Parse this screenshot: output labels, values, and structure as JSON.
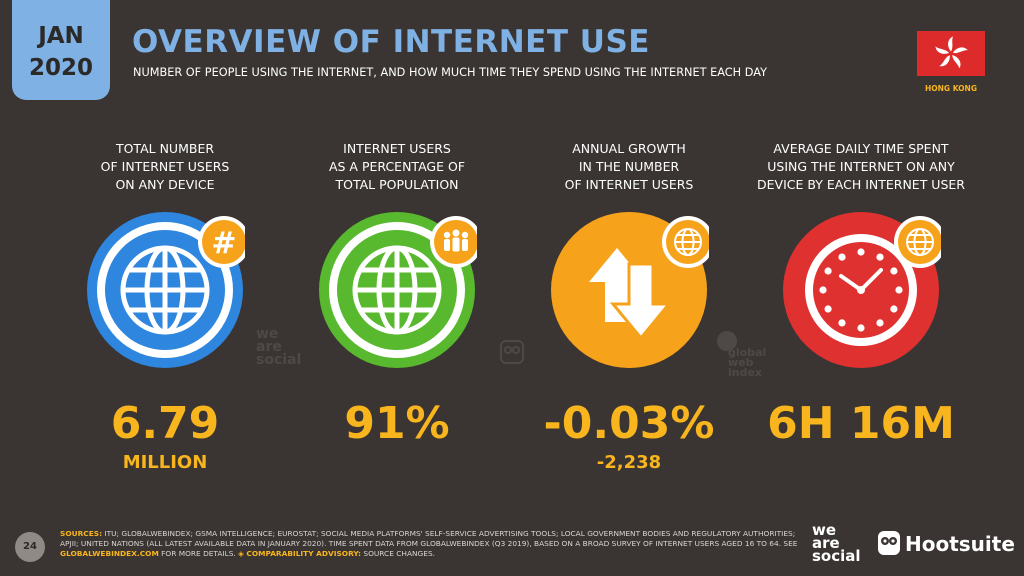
{
  "header": {
    "date_month": "JAN",
    "date_year": "2020",
    "title": "OVERVIEW OF INTERNET USE",
    "subtitle": "NUMBER OF PEOPLE USING THE INTERNET, AND HOW MUCH TIME THEY SPEND USING THE INTERNET EACH DAY",
    "country": "HONG KONG"
  },
  "stats": [
    {
      "label": "TOTAL NUMBER\nOF INTERNET USERS\nON ANY DEVICE",
      "value": "6.79",
      "sub": "MILLION",
      "color": "#2e86de",
      "badge_icon": "hash-icon"
    },
    {
      "label": "INTERNET USERS\nAS A PERCENTAGE OF\nTOTAL POPULATION",
      "value": "91%",
      "sub": "",
      "color": "#58b82e",
      "badge_icon": "people-icon"
    },
    {
      "label": "ANNUAL GROWTH\nIN THE NUMBER\nOF INTERNET USERS",
      "value": "-0.03%",
      "sub": "-2,238",
      "color": "#f7a21b",
      "badge_icon": "globe-icon"
    },
    {
      "label": "AVERAGE DAILY TIME SPENT\nUSING THE INTERNET ON ANY\nDEVICE BY EACH INTERNET USER",
      "value": "6H 16M",
      "sub": "",
      "color": "#e03131",
      "badge_icon": "globe-icon"
    }
  ],
  "colors": {
    "accent_blue": "#7fb1e4",
    "value_orange": "#f9b51e",
    "background": "#3a3532"
  },
  "watermarks": {
    "we_are_social": "we\nare\nsocial",
    "globalwebindex": "global\nweb\nindex"
  },
  "footer": {
    "page_number": "24",
    "sources_label": "SOURCES:",
    "sources_text": "ITU; GLOBALWEBINDEX; GSMA INTELLIGENCE; EUROSTAT; SOCIAL MEDIA PLATFORMS' SELF-SERVICE ADVERTISING TOOLS; LOCAL GOVERNMENT BODIES AND REGULATORY AUTHORITIES; APJII; UNITED NATIONS (ALL LATEST AVAILABLE DATA IN JANUARY 2020). TIME SPENT DATA FROM GLOBALWEBINDEX (Q3 2019), BASED ON A BROAD SURVEY OF INTERNET USERS AGED 16 TO 64. SEE",
    "link_text": "GLOBALWEBINDEX.COM",
    "after_link": "FOR MORE DETAILS.",
    "advisory_label": "◈ COMPARABILITY ADVISORY:",
    "advisory_text": "SOURCE CHANGES.",
    "brand_was": "we\nare\nsocial",
    "brand_hootsuite": "Hootsuite"
  }
}
